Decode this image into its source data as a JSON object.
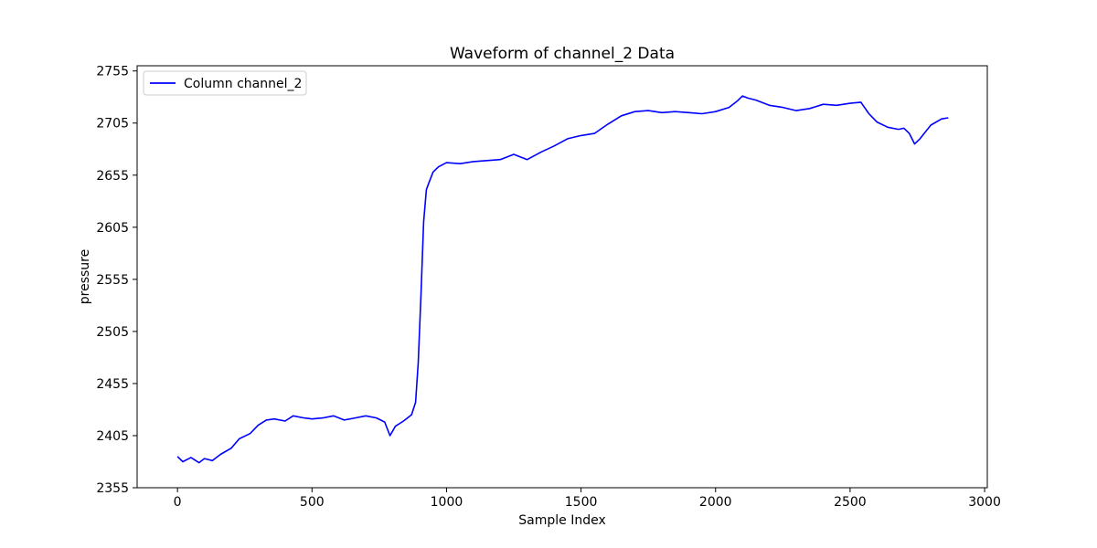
{
  "chart_data": {
    "type": "line",
    "title": "Waveform of channel_2 Data",
    "xlabel": "Sample Index",
    "ylabel": "pressure",
    "xlim": [
      -150,
      3010
    ],
    "ylim": [
      2355,
      2760
    ],
    "xticks": [
      0,
      500,
      1000,
      1500,
      2000,
      2500,
      3000
    ],
    "yticks": [
      2355,
      2405,
      2455,
      2505,
      2555,
      2605,
      2655,
      2705,
      2755
    ],
    "grid": false,
    "legend": {
      "position": "top-left",
      "entries": [
        "Column channel_2"
      ]
    },
    "series": [
      {
        "name": "Column channel_2",
        "color": "#0000ff",
        "x": [
          0,
          20,
          50,
          80,
          100,
          130,
          160,
          200,
          230,
          270,
          300,
          330,
          360,
          400,
          430,
          470,
          500,
          540,
          580,
          620,
          660,
          700,
          740,
          770,
          790,
          810,
          840,
          870,
          885,
          895,
          905,
          915,
          925,
          935,
          950,
          970,
          1000,
          1050,
          1100,
          1150,
          1200,
          1250,
          1300,
          1350,
          1400,
          1450,
          1500,
          1550,
          1600,
          1650,
          1700,
          1750,
          1800,
          1850,
          1900,
          1950,
          2000,
          2050,
          2080,
          2100,
          2120,
          2150,
          2200,
          2250,
          2300,
          2350,
          2400,
          2450,
          2500,
          2540,
          2570,
          2600,
          2640,
          2680,
          2700,
          2720,
          2740,
          2760,
          2800,
          2840,
          2865
        ],
        "y": [
          2385,
          2380,
          2384,
          2379,
          2383,
          2381,
          2387,
          2393,
          2402,
          2407,
          2415,
          2420,
          2421,
          2419,
          2424,
          2422,
          2421,
          2422,
          2424,
          2420,
          2422,
          2424,
          2422,
          2418,
          2405,
          2414,
          2419,
          2425,
          2437,
          2475,
          2540,
          2610,
          2641,
          2648,
          2658,
          2663,
          2667,
          2666,
          2668,
          2669,
          2670,
          2675,
          2670,
          2677,
          2683,
          2690,
          2693,
          2695,
          2704,
          2712,
          2716,
          2717,
          2715,
          2716,
          2715,
          2714,
          2716,
          2720,
          2726,
          2731,
          2729,
          2727,
          2722,
          2720,
          2717,
          2719,
          2723,
          2722,
          2724,
          2725,
          2714,
          2706,
          2701,
          2699,
          2700,
          2695,
          2685,
          2690,
          2703,
          2709,
          2710
        ]
      }
    ]
  }
}
